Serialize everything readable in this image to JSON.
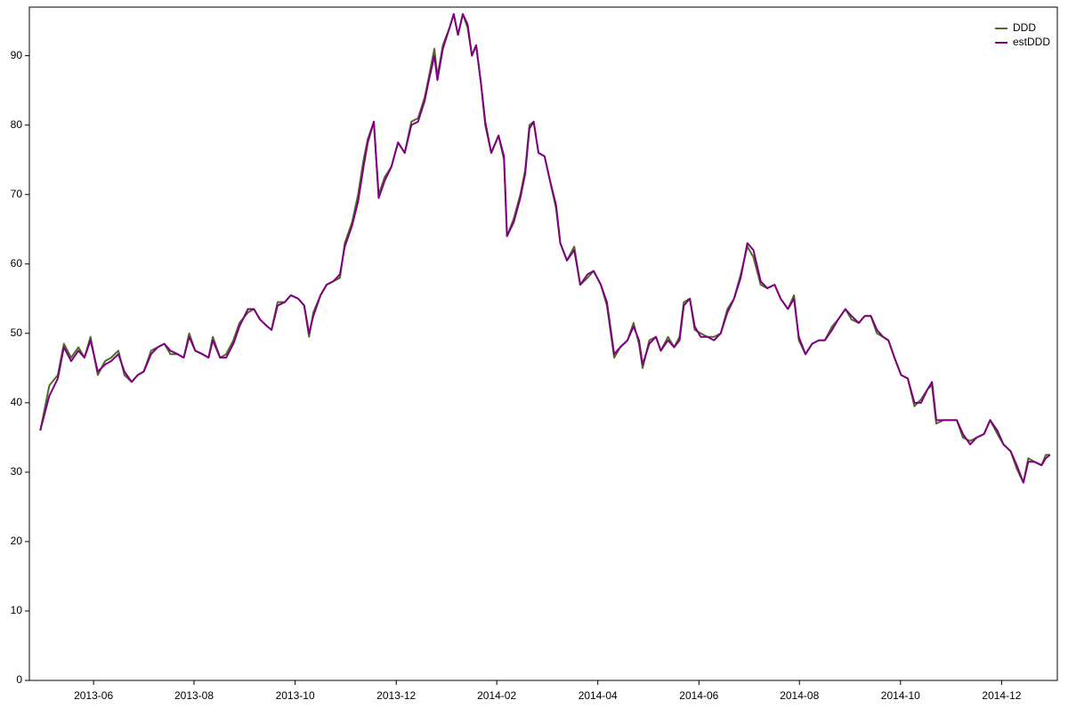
{
  "chart_data": {
    "type": "line",
    "x": [
      2013.329,
      2013.344,
      2013.358,
      2013.368,
      2013.38,
      2013.392,
      2013.402,
      2013.412,
      2013.424,
      2013.436,
      2013.446,
      2013.458,
      2013.468,
      2013.48,
      2013.49,
      2013.5,
      2013.512,
      2013.523,
      2013.534,
      2013.544,
      2013.556,
      2013.566,
      2013.575,
      2013.585,
      2013.597,
      2013.607,
      2013.614,
      2013.626,
      2013.636,
      2013.648,
      2013.658,
      2013.672,
      2013.682,
      2013.692,
      2013.704,
      2013.711,
      2013.721,
      2013.733,
      2013.743,
      2013.755,
      2013.765,
      2013.773,
      2013.78,
      2013.792,
      2013.802,
      2013.813,
      2013.824,
      2013.832,
      2013.844,
      2013.854,
      2013.863,
      2013.87,
      2013.88,
      2013.888,
      2013.898,
      2013.909,
      2013.92,
      2013.931,
      2013.942,
      2013.953,
      2013.964,
      2013.971,
      2013.98,
      2013.985,
      2013.994,
      2014.005,
      2014.012,
      2014.019,
      2014.027,
      2014.035,
      2014.042,
      2014.049,
      2014.057,
      2014.064,
      2014.074,
      2014.086,
      2014.095,
      2014.1,
      2014.111,
      2014.122,
      2014.13,
      2014.137,
      2014.144,
      2014.152,
      2014.162,
      2014.171,
      2014.181,
      2014.188,
      2014.199,
      2014.211,
      2014.221,
      2014.233,
      2014.243,
      2014.255,
      2014.265,
      2014.277,
      2014.287,
      2014.299,
      2014.309,
      2014.318,
      2014.324,
      2014.335,
      2014.346,
      2014.354,
      2014.366,
      2014.376,
      2014.385,
      2014.392,
      2014.402,
      2014.41,
      2014.42,
      2014.431,
      2014.442,
      2014.453,
      2014.464,
      2014.475,
      2014.486,
      2014.497,
      2014.507,
      2014.519,
      2014.53,
      2014.542,
      2014.552,
      2014.564,
      2014.574,
      2014.582,
      2014.593,
      2014.604,
      2014.615,
      2014.625,
      2014.637,
      2014.647,
      2014.659,
      2014.669,
      2014.681,
      2014.691,
      2014.701,
      2014.711,
      2014.721,
      2014.73,
      2014.74,
      2014.751,
      2014.762,
      2014.773,
      2014.784,
      2014.795,
      2014.802,
      2014.809,
      2014.821,
      2014.831,
      2014.843,
      2014.853,
      2014.865,
      2014.876,
      2014.888,
      2014.898,
      2014.91,
      2014.92,
      2014.932,
      2014.942,
      2014.953,
      2014.961,
      2014.971,
      2014.983,
      2014.99,
      2014.997
    ],
    "series": [
      {
        "name": "DDD",
        "color": "#4f6b2a",
        "values": [
          36,
          42.5,
          44,
          48.5,
          46.5,
          48,
          46.5,
          49.5,
          44,
          46,
          46.5,
          47.5,
          44,
          43,
          44,
          44.5,
          47.5,
          48,
          48.5,
          47,
          47,
          46.5,
          50,
          47.5,
          47,
          46.5,
          49.5,
          46.5,
          47,
          49,
          51.5,
          53,
          53.5,
          52,
          51,
          50.5,
          54.5,
          54.5,
          55.5,
          55,
          54,
          49.5,
          53,
          55.5,
          57,
          57.5,
          58,
          63,
          66,
          70,
          75,
          78,
          80.5,
          70,
          72.5,
          74,
          77.5,
          76,
          80.5,
          81,
          84,
          87,
          91,
          87,
          91.5,
          94,
          96,
          93,
          96,
          94,
          90,
          91.5,
          86,
          80,
          76,
          78.5,
          75,
          64,
          66.5,
          70,
          73.5,
          80,
          80.5,
          76,
          75.5,
          72,
          68,
          63,
          60.5,
          62.5,
          57,
          58,
          59,
          57,
          54,
          46.5,
          48,
          49,
          51.5,
          48.5,
          45,
          49,
          49.5,
          47.5,
          49.5,
          48,
          49.5,
          54.5,
          55,
          50.5,
          50,
          49.5,
          49.5,
          50,
          53.5,
          55,
          58.5,
          62.5,
          61,
          57,
          56.5,
          57,
          55,
          53.5,
          55.5,
          49,
          47,
          48.5,
          49,
          49,
          51,
          52,
          53.5,
          52,
          51.5,
          52.5,
          52.5,
          50,
          49.5,
          49,
          46.5,
          44,
          43.5,
          39.5,
          40.5,
          42,
          42.5,
          37,
          37.5,
          37.5,
          37.5,
          35,
          34.5,
          35,
          35.5,
          37.5,
          35.5,
          34,
          33,
          30.5,
          28.5,
          32,
          31.5,
          31,
          32.5,
          32.5
        ]
      },
      {
        "name": "estDDD",
        "color": "#800080",
        "values": [
          36,
          41,
          43.5,
          48,
          46,
          47.5,
          46.5,
          49,
          44.5,
          45.5,
          46,
          47,
          44.5,
          43,
          44,
          44.5,
          47,
          48,
          48.5,
          47.5,
          47,
          46.5,
          49.5,
          47.5,
          47,
          46.5,
          49,
          46.5,
          46.5,
          48.5,
          51,
          53.5,
          53.5,
          52,
          51,
          50.5,
          54,
          54.5,
          55.5,
          55,
          54,
          50,
          52.5,
          55.5,
          57,
          57.5,
          58.5,
          62.5,
          65.5,
          69,
          74,
          77.5,
          80.5,
          69.5,
          72,
          74,
          77.5,
          76,
          80,
          80.5,
          83.5,
          86.5,
          90,
          86.5,
          91,
          94,
          96,
          93,
          96,
          94.5,
          90,
          91.5,
          86,
          80.5,
          76,
          78.5,
          75.5,
          64,
          66,
          69.5,
          73,
          79.5,
          80.5,
          76,
          75.5,
          72,
          68.5,
          63,
          60.5,
          62,
          57,
          58.5,
          59,
          57,
          54.5,
          47,
          48,
          49,
          51,
          49,
          45.5,
          48.5,
          49.5,
          47.5,
          49,
          48,
          49,
          54,
          55,
          51,
          49.5,
          49.5,
          49,
          50,
          53,
          55,
          58,
          63,
          62,
          57.5,
          56.5,
          57,
          55,
          53.5,
          55,
          49.5,
          47,
          48.5,
          49,
          49,
          50.5,
          52,
          53.5,
          52.5,
          51.5,
          52.5,
          52.5,
          50.5,
          49.5,
          49,
          46.5,
          44,
          43.5,
          40,
          40,
          42,
          43,
          37.5,
          37.5,
          37.5,
          37.5,
          35.5,
          34,
          35,
          35.5,
          37.5,
          36,
          34,
          33,
          31,
          28.5,
          31.5,
          31.5,
          31,
          32,
          32.5
        ]
      }
    ],
    "xlim": [
      2013.311,
      2015.009
    ],
    "xticks": [
      {
        "value": 2013.417,
        "label": "2013-06"
      },
      {
        "value": 2013.583,
        "label": "2013-08"
      },
      {
        "value": 2013.75,
        "label": "2013-10"
      },
      {
        "value": 2013.917,
        "label": "2013-12"
      },
      {
        "value": 2014.083,
        "label": "2014-02"
      },
      {
        "value": 2014.25,
        "label": "2014-04"
      },
      {
        "value": 2014.417,
        "label": "2014-06"
      },
      {
        "value": 2014.583,
        "label": "2014-08"
      },
      {
        "value": 2014.75,
        "label": "2014-10"
      },
      {
        "value": 2014.917,
        "label": "2014-12"
      }
    ],
    "ylim": [
      0,
      97
    ],
    "yticks": [
      0,
      10,
      20,
      30,
      40,
      50,
      60,
      70,
      80,
      90
    ],
    "grid": false,
    "legend": "upper right"
  }
}
